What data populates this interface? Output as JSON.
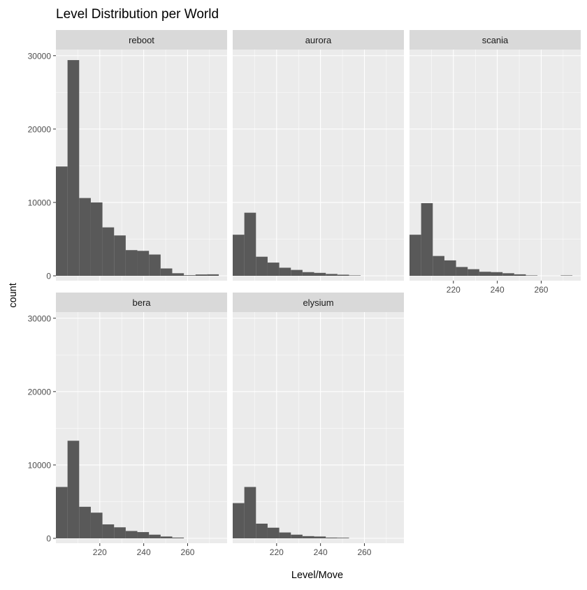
{
  "chart_data": {
    "type": "bar",
    "title": "Level Distribution per World",
    "xlabel": "Level/Move",
    "ylabel": "count",
    "x_ticks": [
      220,
      240,
      260
    ],
    "y_ticks": [
      0,
      10000,
      20000,
      30000
    ],
    "xlim": [
      200,
      278
    ],
    "ylim": [
      0,
      30000
    ],
    "bin_width": 5.3,
    "bin_start": 200,
    "colors": {
      "bar": "#595959",
      "panel": "#EBEBEB",
      "strip": "#D9D9D9",
      "grid": "#FFFFFF"
    },
    "panels": [
      {
        "name": "reboot",
        "values": [
          14900,
          29400,
          10600,
          10000,
          6600,
          5500,
          3500,
          3400,
          2900,
          1000,
          350,
          80,
          180,
          200
        ]
      },
      {
        "name": "aurora",
        "values": [
          5600,
          8600,
          2600,
          1800,
          1100,
          800,
          500,
          400,
          250,
          150,
          50,
          0,
          0,
          0
        ]
      },
      {
        "name": "scania",
        "values": [
          5600,
          9900,
          2700,
          2100,
          1200,
          900,
          550,
          500,
          350,
          200,
          50,
          0,
          0,
          50
        ]
      },
      {
        "name": "bera",
        "values": [
          7000,
          13300,
          4300,
          3500,
          1900,
          1500,
          1000,
          850,
          500,
          250,
          100,
          0,
          0,
          0
        ]
      },
      {
        "name": "elysium",
        "values": [
          4800,
          7000,
          2000,
          1450,
          800,
          500,
          300,
          250,
          100,
          80,
          0,
          0,
          0,
          0
        ]
      }
    ]
  }
}
